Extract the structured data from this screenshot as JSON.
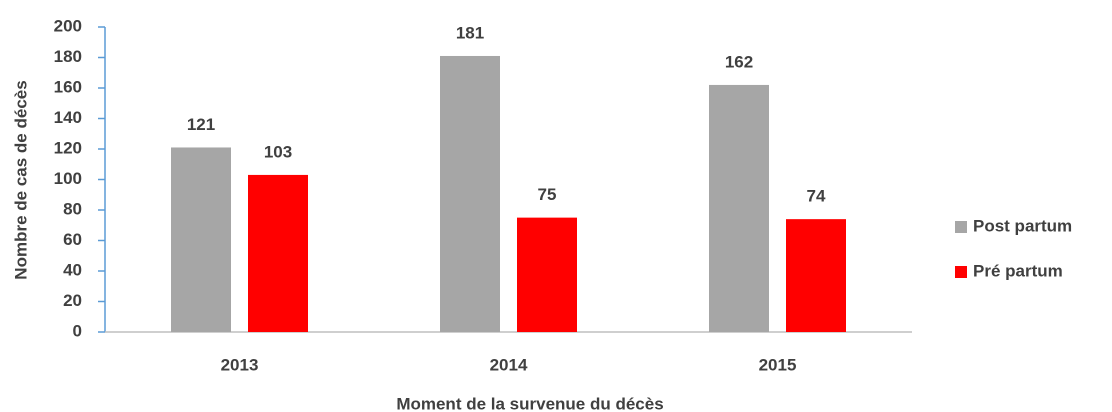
{
  "chart_data": {
    "type": "bar",
    "x_label": "Moment de la survenue du décès",
    "y_label": "Nombre de cas de décès",
    "categories": [
      "2013",
      "2014",
      "2015"
    ],
    "series": [
      {
        "name": "Post partum",
        "color": "#a6a6a6",
        "values": [
          121,
          181,
          162
        ]
      },
      {
        "name": "Pré partum",
        "color": "#ff0000",
        "values": [
          103,
          75,
          74
        ]
      }
    ],
    "ylim": [
      0,
      200
    ],
    "yticks": [
      0,
      20,
      40,
      60,
      80,
      100,
      120,
      140,
      160,
      180,
      200
    ],
    "grid": false,
    "legend": "right"
  }
}
